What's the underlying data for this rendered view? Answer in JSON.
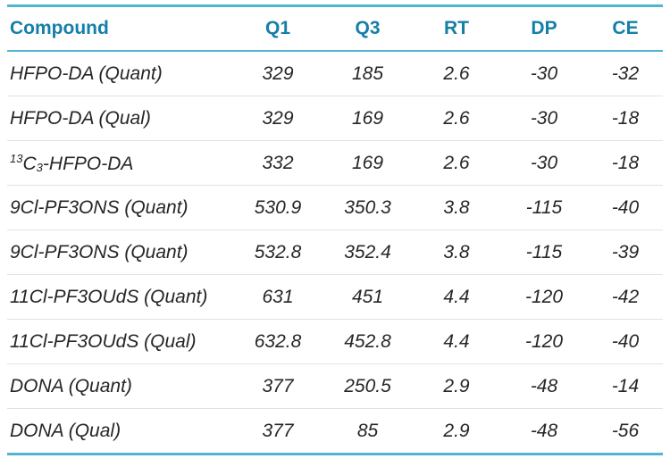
{
  "colors": {
    "header_text": "#147fa8",
    "accent_line": "#52b4d4",
    "row_divider": "#e2e2e2",
    "body_text": "#262626",
    "background": "#ffffff"
  },
  "table": {
    "columns": [
      {
        "key": "compound",
        "label": "Compound"
      },
      {
        "key": "q1",
        "label": "Q1"
      },
      {
        "key": "q3",
        "label": "Q3"
      },
      {
        "key": "rt",
        "label": "RT"
      },
      {
        "key": "dp",
        "label": "DP"
      },
      {
        "key": "ce",
        "label": "CE"
      }
    ],
    "rows": [
      {
        "compound": "HFPO-DA (Quant)",
        "q1": 329,
        "q3": 185,
        "rt": 2.6,
        "dp": -30,
        "ce": -32
      },
      {
        "compound": "HFPO-DA (Qual)",
        "q1": 329,
        "q3": 169,
        "rt": 2.6,
        "dp": -30,
        "ce": -18
      },
      {
        "compound": [
          {
            "text": "13",
            "style": "sup"
          },
          {
            "text": "C"
          },
          {
            "text": "3",
            "style": "sub"
          },
          {
            "text": "-HFPO-DA"
          }
        ],
        "q1": 332,
        "q3": 169,
        "rt": 2.6,
        "dp": -30,
        "ce": -18
      },
      {
        "compound": "9Cl-PF3ONS (Quant)",
        "q1": 530.9,
        "q3": 350.3,
        "rt": 3.8,
        "dp": -115,
        "ce": -40
      },
      {
        "compound": "9Cl-PF3ONS (Quant)",
        "q1": 532.8,
        "q3": 352.4,
        "rt": 3.8,
        "dp": -115,
        "ce": -39
      },
      {
        "compound": "11Cl-PF3OUdS (Quant)",
        "q1": 631,
        "q3": 451,
        "rt": 4.4,
        "dp": -120,
        "ce": -42
      },
      {
        "compound": "11Cl-PF3OUdS (Qual)",
        "q1": 632.8,
        "q3": 452.8,
        "rt": 4.4,
        "dp": -120,
        "ce": -40
      },
      {
        "compound": "DONA (Quant)",
        "q1": 377,
        "q3": 250.5,
        "rt": 2.9,
        "dp": -48,
        "ce": -14
      },
      {
        "compound": "DONA (Qual)",
        "q1": 377,
        "q3": 85,
        "rt": 2.9,
        "dp": -48,
        "ce": -56
      }
    ]
  }
}
